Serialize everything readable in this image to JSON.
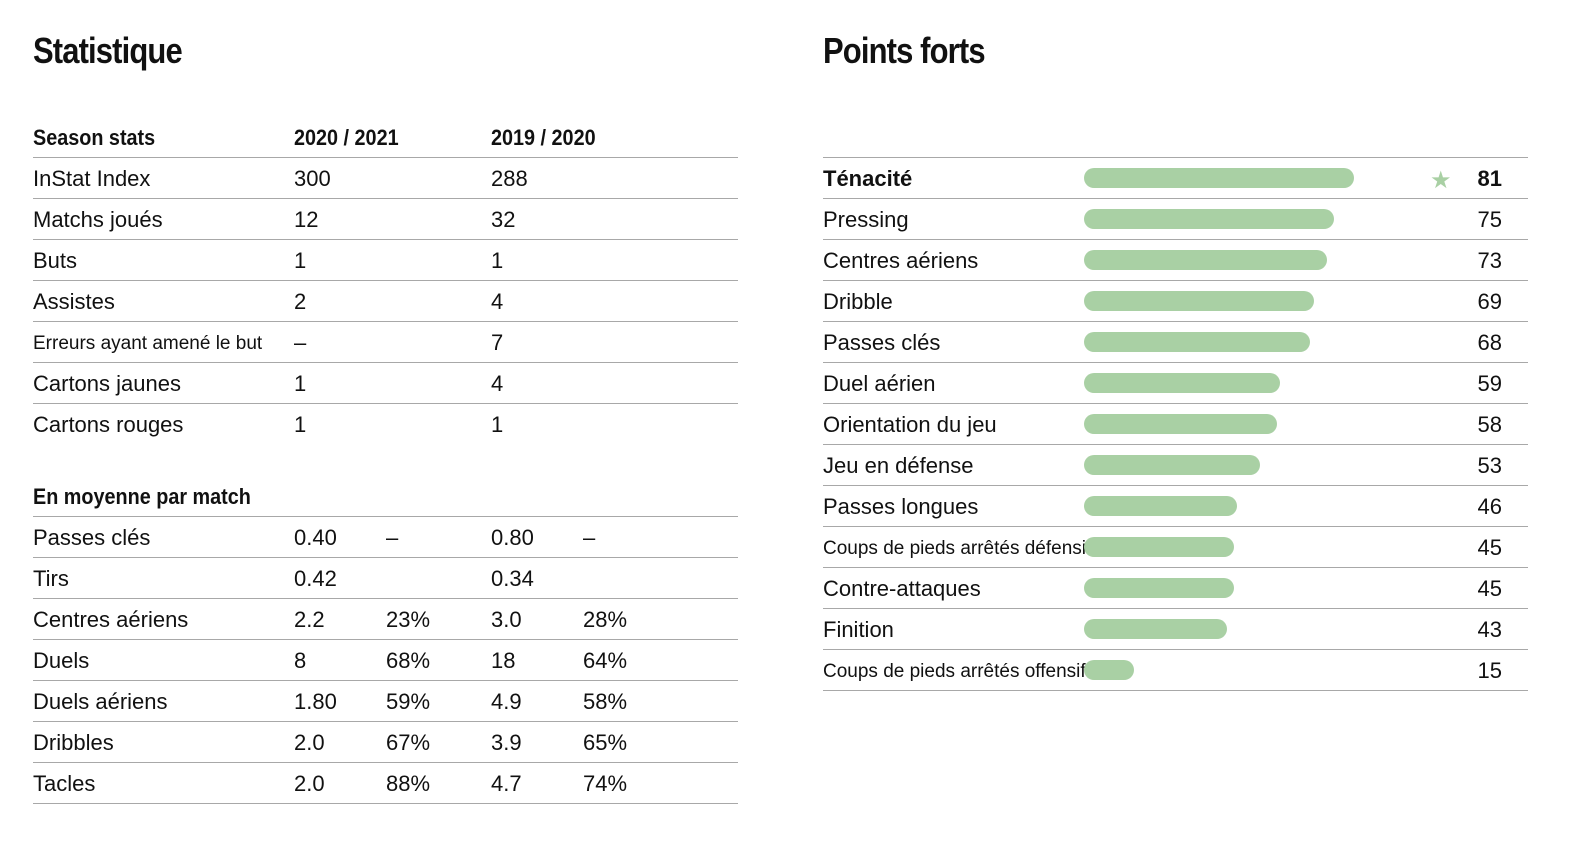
{
  "statistique": {
    "title": "Statistique",
    "season_header": {
      "label": "Season stats",
      "col1": "2020 / 2021",
      "col2": "2019 / 2020"
    },
    "season_rows": [
      {
        "label": "InStat Index",
        "v1": "300",
        "v2": "288"
      },
      {
        "label": "Matchs joués",
        "v1": "12",
        "v2": "32"
      },
      {
        "label": "Buts",
        "v1": "1",
        "v2": "1"
      },
      {
        "label": "Assistes",
        "v1": "2",
        "v2": "4"
      },
      {
        "label": "Erreurs ayant amené le but",
        "v1": "–",
        "v2": "7"
      },
      {
        "label": "Cartons jaunes",
        "v1": "1",
        "v2": "4"
      },
      {
        "label": "Cartons rouges",
        "v1": "1",
        "v2": "1"
      }
    ],
    "avg_header": "En moyenne par match",
    "avg_rows": [
      {
        "label": "Passes clés",
        "v1": "0.40",
        "p1": "–",
        "v2": "0.80",
        "p2": "–"
      },
      {
        "label": "Tirs",
        "v1": "0.42",
        "p1": "",
        "v2": "0.34",
        "p2": ""
      },
      {
        "label": "Centres aériens",
        "v1": "2.2",
        "p1": "23%",
        "v2": "3.0",
        "p2": "28%"
      },
      {
        "label": "Duels",
        "v1": "8",
        "p1": "68%",
        "v2": "18",
        "p2": "64%"
      },
      {
        "label": "Duels aériens",
        "v1": "1.80",
        "p1": "59%",
        "v2": "4.9",
        "p2": "58%"
      },
      {
        "label": "Dribbles",
        "v1": "2.0",
        "p1": "67%",
        "v2": "3.9",
        "p2": "65%"
      },
      {
        "label": "Tacles",
        "v1": "2.0",
        "p1": "88%",
        "v2": "4.7",
        "p2": "74%"
      }
    ]
  },
  "points_forts": {
    "title": "Points forts",
    "bar_color": "#a9d0a4",
    "items": [
      {
        "label": "Ténacité",
        "value": "81",
        "star": true
      },
      {
        "label": "Pressing",
        "value": "75"
      },
      {
        "label": "Centres aériens",
        "value": "73"
      },
      {
        "label": "Dribble",
        "value": "69"
      },
      {
        "label": "Passes clés",
        "value": "68"
      },
      {
        "label": "Duel aérien",
        "value": "59"
      },
      {
        "label": "Orientation du jeu",
        "value": "58"
      },
      {
        "label": "Jeu en défense",
        "value": "53"
      },
      {
        "label": "Passes longues",
        "value": "46"
      },
      {
        "label": "Coups de pieds arrêtés défensifs",
        "value": "45"
      },
      {
        "label": "Contre-attaques",
        "value": "45"
      },
      {
        "label": "Finition",
        "value": "43"
      },
      {
        "label": "Coups de pieds arrêtés offensifs",
        "value": "15"
      }
    ]
  }
}
